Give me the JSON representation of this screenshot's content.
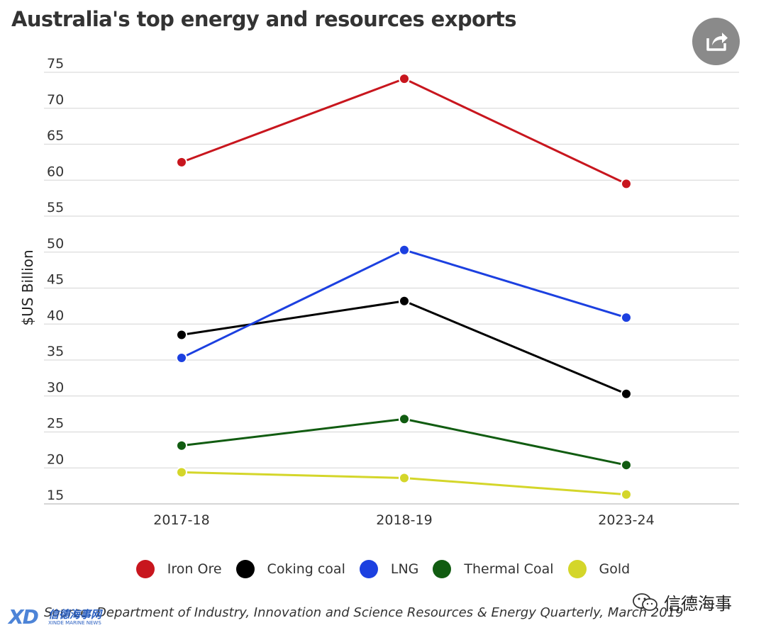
{
  "header": {
    "title": "Australia's top energy and resources exports"
  },
  "chart_data": {
    "type": "line",
    "title": "Australia's top energy and resources exports",
    "ylabel": "$US Billion",
    "xlabel": "",
    "categories": [
      "2017-18",
      "2018-19",
      "2023-24"
    ],
    "ylim": [
      15,
      75
    ],
    "yticks": [
      15,
      20,
      25,
      30,
      35,
      40,
      45,
      50,
      55,
      60,
      65,
      70,
      75
    ],
    "grid": true,
    "legend_position": "bottom",
    "series": [
      {
        "name": "Iron Ore",
        "color": "#c8161e",
        "values": [
          62.5,
          74.1,
          59.5
        ]
      },
      {
        "name": "Coking coal",
        "color": "#000000",
        "values": [
          38.5,
          43.2,
          30.3
        ]
      },
      {
        "name": "LNG",
        "color": "#1c40e0",
        "values": [
          35.3,
          50.3,
          40.9
        ]
      },
      {
        "name": "Thermal Coal",
        "color": "#115c11",
        "values": [
          23.1,
          26.8,
          20.4
        ]
      },
      {
        "name": "Gold",
        "color": "#d4d62a",
        "values": [
          19.4,
          18.6,
          16.3
        ]
      }
    ]
  },
  "footer": {
    "source": "Source: Department of Industry, Innovation and Science Resources & Energy Quarterly, March 2019",
    "logo_mark": "XD",
    "logo_cn": "信德海事网",
    "logo_en": "XINDE MARINE NEWS",
    "watermark_text": "信德海事"
  },
  "icons": {
    "share": "share-icon",
    "watermark": "wechat-icon"
  }
}
